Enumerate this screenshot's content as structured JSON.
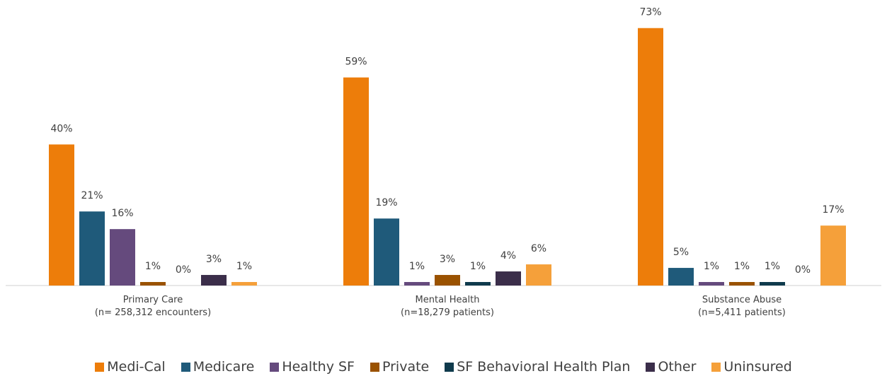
{
  "chart_data": {
    "type": "bar",
    "categories": [
      "Primary Care\n(n= 258,312 encounters)",
      "Mental Health\n(n=18,279 patients)",
      "Substance Abuse\n(n=5,411 patients)"
    ],
    "series": [
      {
        "name": "Medi-Cal",
        "color": "#ed7d0a",
        "values": [
          40,
          59,
          73
        ],
        "value_labels": [
          "40%",
          "59%",
          "73%"
        ]
      },
      {
        "name": "Medicare",
        "color": "#1f5a7a",
        "values": [
          21,
          19,
          5
        ],
        "value_labels": [
          "21%",
          "19%",
          "5%"
        ]
      },
      {
        "name": "Healthy SF",
        "color": "#654a7d",
        "values": [
          16,
          1,
          1
        ],
        "value_labels": [
          "16%",
          "1%",
          "1%"
        ]
      },
      {
        "name": "Private",
        "color": "#9a5200",
        "values": [
          1,
          3,
          1
        ],
        "value_labels": [
          "1%",
          "3%",
          "1%"
        ]
      },
      {
        "name": "SF Behavioral Health Plan",
        "color": "#0f3a4c",
        "values": [
          0,
          1,
          1
        ],
        "value_labels": [
          "0%",
          "1%",
          "1%"
        ]
      },
      {
        "name": "Other",
        "color": "#3b2e4a",
        "values": [
          3,
          4,
          0
        ],
        "value_labels": [
          "3%",
          "4%",
          "0%"
        ]
      },
      {
        "name": "Uninsured",
        "color": "#f5a03a",
        "values": [
          1,
          6,
          17
        ],
        "value_labels": [
          "1%",
          "6%",
          "17%"
        ]
      }
    ]
  }
}
